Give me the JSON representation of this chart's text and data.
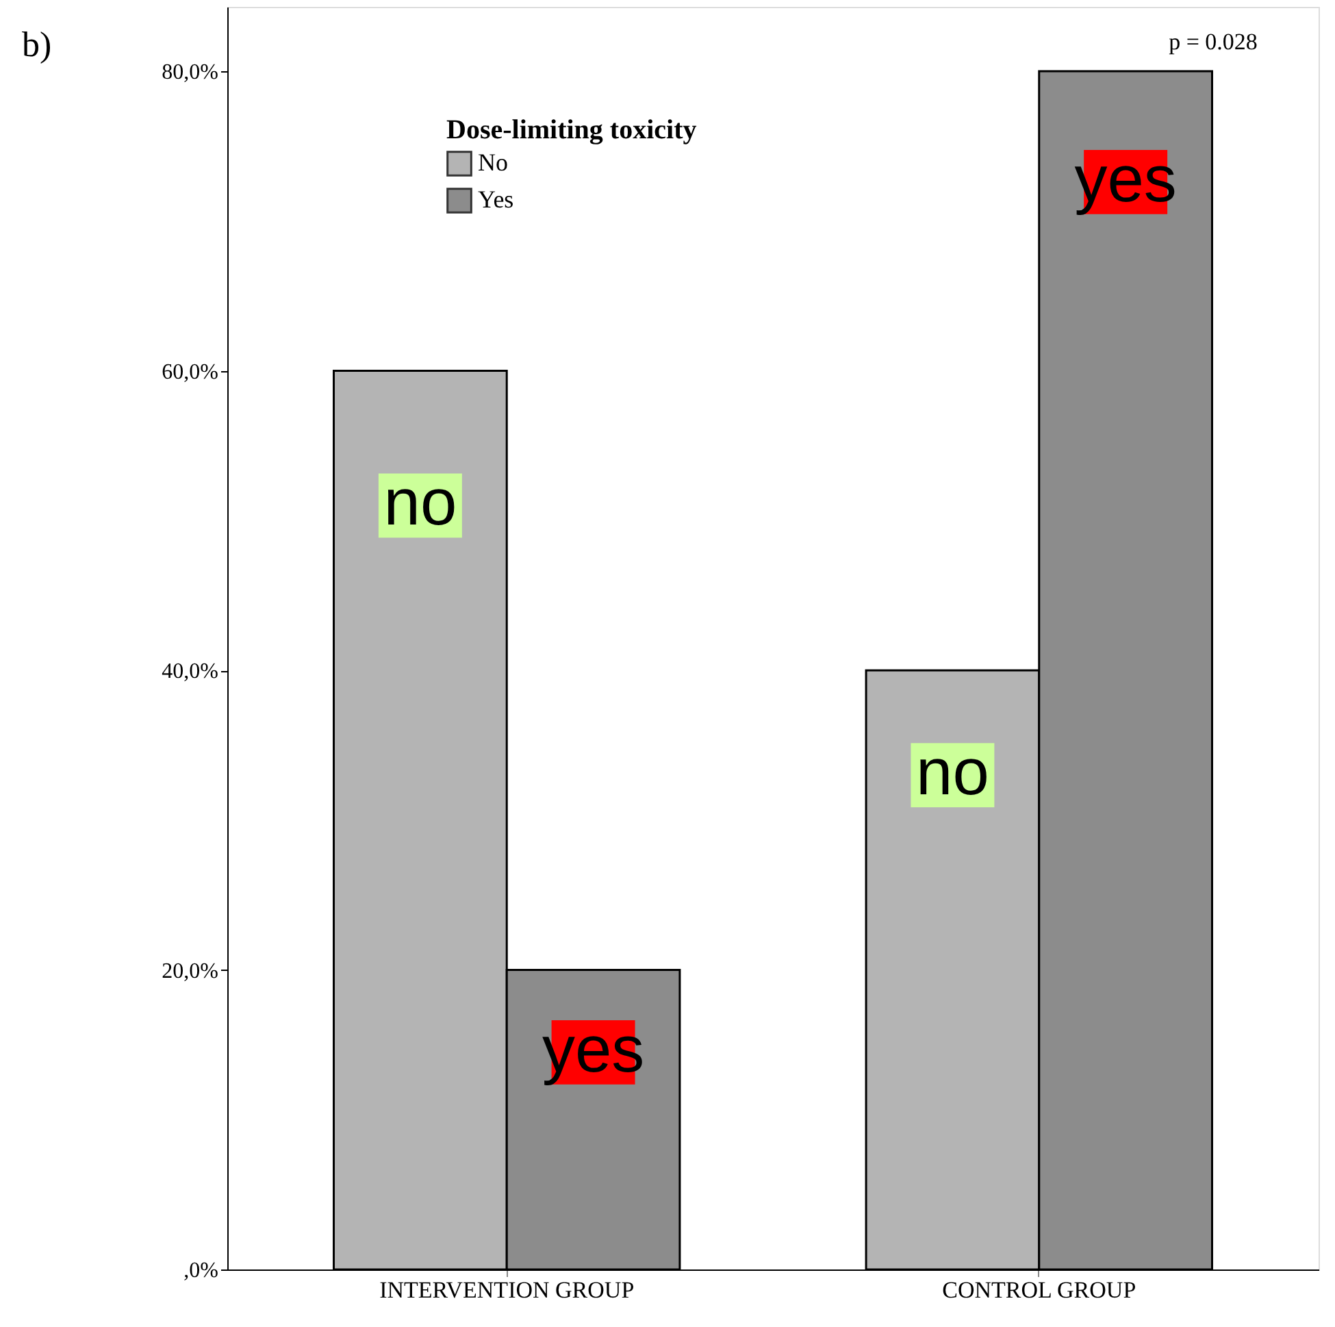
{
  "chart_data": {
    "type": "bar",
    "categories": [
      "INTERVENTION GROUP",
      "CONTROL GROUP"
    ],
    "series": [
      {
        "name": "No",
        "color": "#b4b4b4",
        "values": [
          60,
          40
        ]
      },
      {
        "name": "Yes",
        "color": "#8c8c8c",
        "values": [
          20,
          80
        ]
      }
    ],
    "ylim": [
      0,
      84.3
    ],
    "yticks": [
      {
        "value": 0,
        "label": ",0%"
      },
      {
        "value": 20,
        "label": "20,0%"
      },
      {
        "value": 40,
        "label": "40,0%"
      },
      {
        "value": 60,
        "label": "60,0%"
      },
      {
        "value": 80,
        "label": "80,0%"
      }
    ],
    "legend_title": "Dose-limiting toxicity",
    "legend": "top left",
    "grid": false,
    "annotations": [
      "b)",
      {
        "text": "no",
        "x": "INTERVENTION GROUP",
        "y": 51
      },
      {
        "text": "yes",
        "x": "INTERVENTION GROUP",
        "y": 14.5
      },
      {
        "text": "no",
        "x": "CONTROL GROUP",
        "y": 33
      },
      {
        "text": "yes",
        "x": "CONTROL GROUP",
        "y": 72.6
      },
      "p = 0.028"
    ]
  }
}
